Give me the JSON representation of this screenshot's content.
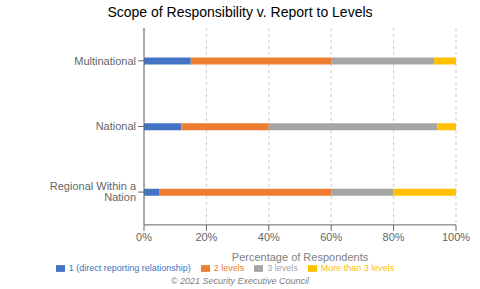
{
  "chart_data": {
    "type": "bar",
    "orientation": "horizontal",
    "stacked": true,
    "title": "Scope of Responsibility v. Report to Levels",
    "categories": [
      "Regional Within a Nation",
      "National",
      "Multinational"
    ],
    "series": [
      {
        "name": "1 (direct reporting relationship)",
        "color": "#4472C4",
        "values": [
          5,
          12,
          15
        ]
      },
      {
        "name": "2 levels",
        "color": "#ED7D31",
        "values": [
          55,
          28,
          45
        ]
      },
      {
        "name": "3 levels",
        "color": "#A5A5A5",
        "values": [
          20,
          54,
          33
        ]
      },
      {
        "name": "More than 3 levels",
        "color": "#FFC000",
        "values": [
          20,
          6,
          7
        ]
      }
    ],
    "xlabel": "Percentage of Respondents",
    "xlim": [
      0,
      100
    ],
    "xticks": [
      {
        "value": 0,
        "label": "0%"
      },
      {
        "value": 20,
        "label": "20%"
      },
      {
        "value": 40,
        "label": "40%"
      },
      {
        "value": 60,
        "label": "60%"
      },
      {
        "value": 80,
        "label": "80%"
      },
      {
        "value": 100,
        "label": "100%"
      }
    ],
    "grid": true,
    "legend": "bottom",
    "annotations": [
      "© 2021 Security Executive Council"
    ]
  }
}
